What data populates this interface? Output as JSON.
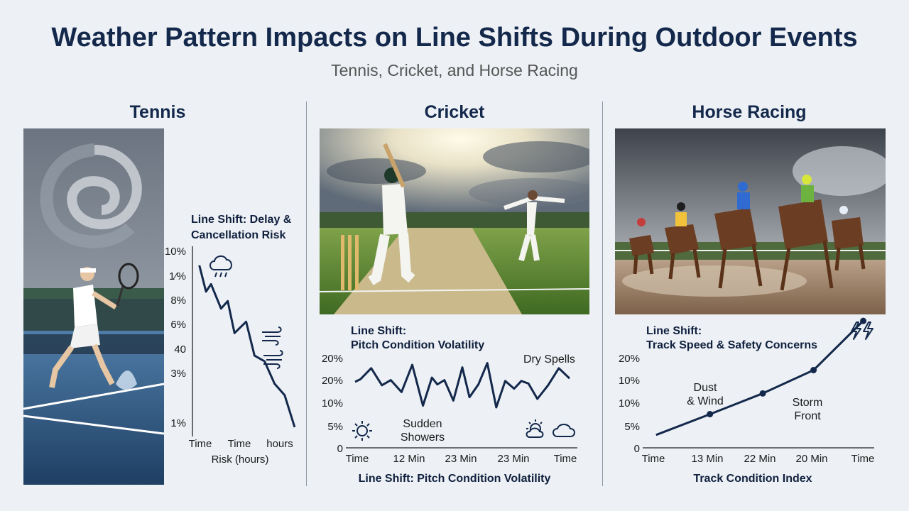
{
  "header": {
    "title": "Weather Pattern Impacts on Line Shifts During Outdoor Events",
    "subtitle": "Tennis, Cricket, and Horse Racing"
  },
  "colors": {
    "line": "#13284b",
    "title": "#13284b",
    "axis": "#222222"
  },
  "columns": [
    {
      "title": "Tennis",
      "chart_heading": [
        "Line Shift: Delay &",
        "Cancellation Risk"
      ],
      "annotations": [],
      "icons": [
        "rain-cloud-icon",
        "wind-icon",
        "wind-icon"
      ]
    },
    {
      "title": "Cricket",
      "chart_heading": [
        "Line Shift:",
        "Pitch Condition Volatility"
      ],
      "annotations": [
        "Dry Spells",
        "Sudden",
        "Showers"
      ],
      "icons": [
        "sun-icon",
        "partly-sunny-icon",
        "cloud-icon"
      ]
    },
    {
      "title": "Horse Racing",
      "chart_heading": [
        "Line Shift:",
        "Track Speed & Safety Concerns"
      ],
      "annotations": [
        "Dust",
        "& Wind",
        "Storm",
        "Front"
      ],
      "icons": [
        "lightning-icon"
      ]
    }
  ],
  "chart_data": [
    {
      "type": "line",
      "title": "Line Shift: Delay & Cancellation Risk",
      "xlabel": "Risk (hours)",
      "ylabel": "",
      "y_tick_labels": [
        "10%",
        "1⁄%",
        "8%",
        "6%",
        "40",
        "3%",
        "1%"
      ],
      "x_tick_labels": [
        "Time",
        "Time",
        "hours"
      ],
      "series": [
        {
          "x": [
            0,
            0.2,
            0.35,
            0.65,
            0.85,
            1.05,
            1.4,
            1.65,
            1.95,
            2.25,
            2.55,
            2.85
          ],
          "values": [
            9.1,
            7.7,
            8.1,
            6.8,
            7.2,
            5.5,
            6.1,
            4.3,
            4.0,
            2.8,
            2.2,
            0.5
          ]
        }
      ],
      "ylim": [
        0,
        10
      ],
      "xlim": [
        -0.1,
        3.0
      ],
      "grid": false
    },
    {
      "type": "line",
      "title": "Line Shift: Pitch Condition Volatility",
      "xlabel": "Line Shift: Pitch Condition Volatility",
      "ylabel": "",
      "y_tick_labels": [
        "20%",
        "20%",
        "10%",
        "5%",
        "0"
      ],
      "x_tick_labels": [
        "Time",
        "12 Min",
        "23 Min",
        "23 Min",
        "Time"
      ],
      "series": [
        {
          "x": [
            0,
            0.3,
            0.9,
            1.5,
            2.0,
            2.6,
            3.2,
            3.8,
            4.3,
            4.6,
            5.0,
            5.5,
            6.0,
            6.4,
            6.9,
            7.4,
            7.9,
            8.4,
            8.9,
            9.3,
            9.7,
            10.2,
            10.8,
            11.4,
            12.0
          ],
          "values": [
            3.5,
            3.65,
            4.3,
            3.3,
            3.6,
            2.9,
            4.5,
            2.1,
            3.75,
            3.35,
            3.6,
            2.4,
            4.35,
            2.6,
            3.35,
            4.6,
            2.0,
            3.55,
            3.1,
            3.55,
            3.4,
            2.5,
            3.3,
            4.3,
            3.7
          ]
        }
      ],
      "ylim": [
        0,
        5
      ],
      "xlim": [
        0,
        12
      ],
      "grid": false
    },
    {
      "type": "line",
      "title": "Line Shift: Track Speed & Safety Concerns",
      "xlabel": "Track Condition Index",
      "ylabel": "",
      "y_tick_labels": [
        "20%",
        "10%",
        "10%",
        "5%",
        "0"
      ],
      "x_tick_labels": [
        "Time",
        "13 Min",
        "22 Min",
        "20 Min",
        "Time"
      ],
      "series": [
        {
          "x": [
            0,
            2.6,
            5.15,
            7.6,
            10.0
          ],
          "values": [
            0.5,
            1.3,
            2.1,
            3.0,
            4.9
          ]
        }
      ],
      "ylim": [
        0,
        4
      ],
      "xlim": [
        -0.2,
        10.7
      ],
      "grid": false
    }
  ]
}
